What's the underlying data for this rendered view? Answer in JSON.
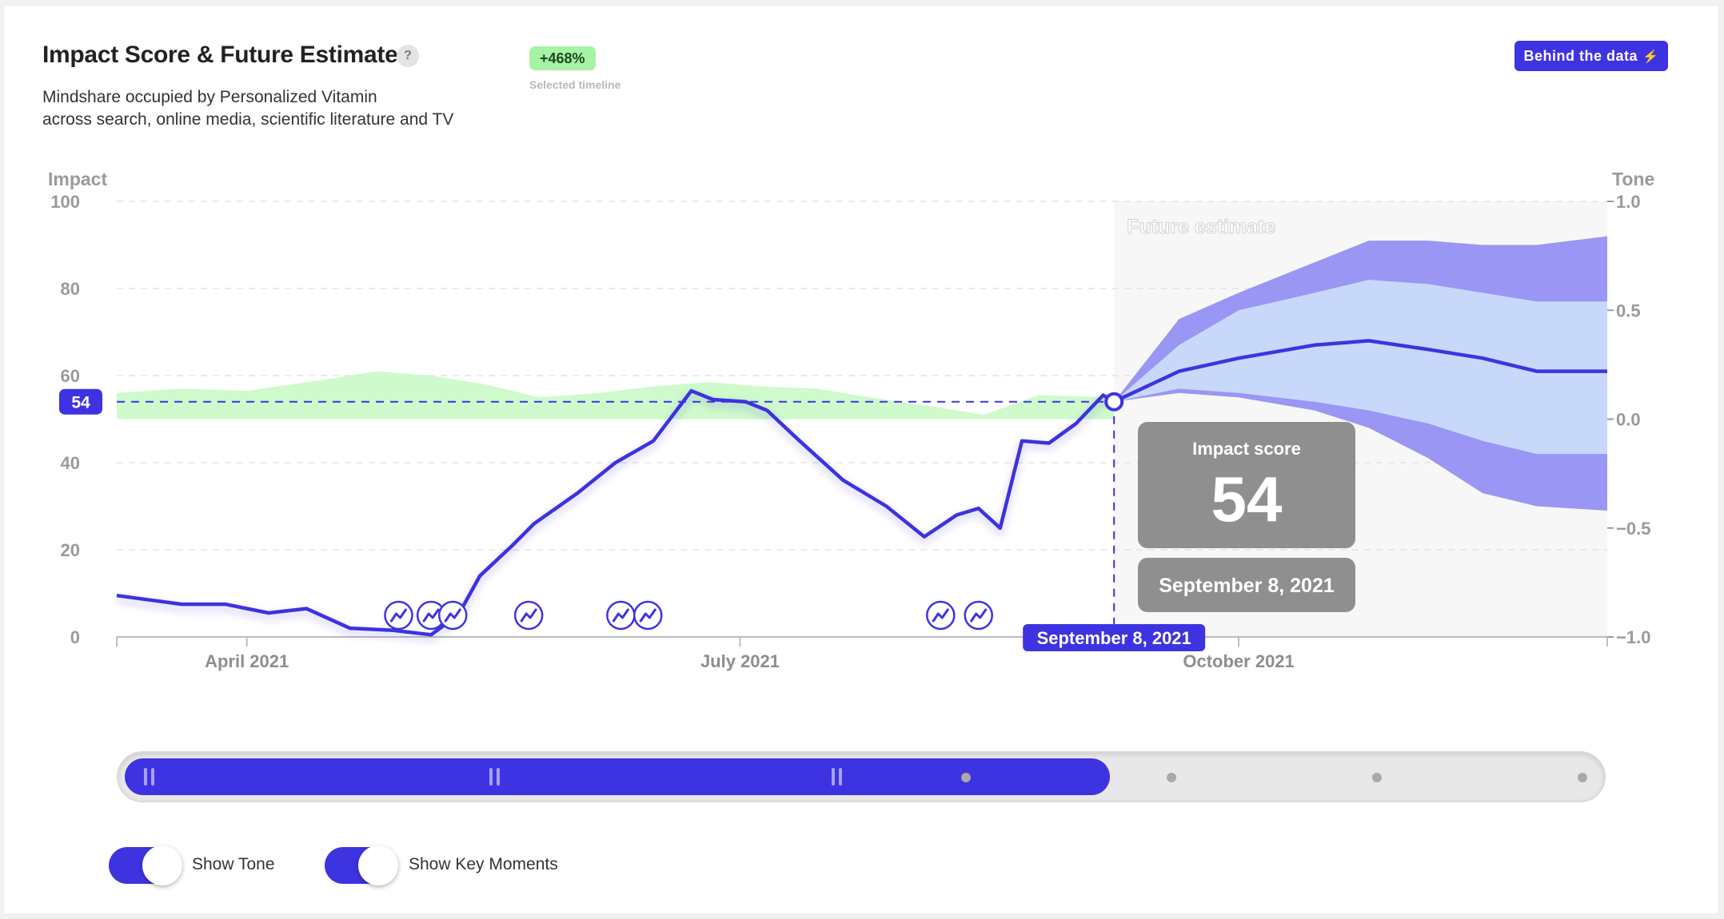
{
  "header": {
    "title": "Impact Score & Future Estimate",
    "help_label": "?",
    "subtitle_line1": "Mindshare occupied by Personalized Vitamin",
    "subtitle_line2": "across search, online media, scientific literature and TV",
    "badge": "+468%",
    "badge_caption": "Selected timeline",
    "behind_button": "Behind the data",
    "behind_icon": "bolt-icon"
  },
  "colors": {
    "accent": "#3e33e0",
    "tone_band": "#c9fac6",
    "forecast_outer": "#9a96f3",
    "forecast_inner": "#c8d8fb",
    "future_region": "#f7f7f7",
    "tooltip_bg": "#8f8f8f"
  },
  "chart_data": {
    "type": "line",
    "left_axis_label": "Impact",
    "right_axis_label": "Tone",
    "ylim": [
      0,
      100
    ],
    "y_ticks": [
      "100",
      "80",
      "60",
      "40",
      "20",
      "0"
    ],
    "tone_ylim": [
      -1,
      1
    ],
    "tone_ticks": [
      "1.0",
      "0.5",
      "0.0",
      "−0.5",
      "−1.0"
    ],
    "x_ticks": [
      "April 2021",
      "July 2021",
      "October 2021"
    ],
    "x_tick_dates": [
      "2021-04-01",
      "2021-07-01",
      "2021-10-01"
    ],
    "x_range": [
      "2021-03-08",
      "2021-12-08"
    ],
    "future_label": "Future estimate",
    "future_start": "2021-09-08",
    "current_value": 54,
    "current_date": "September 8, 2021",
    "tooltip_title": "Impact score",
    "tooltip_value": "54",
    "tooltip_date": "September 8, 2021",
    "marker_value_label": "54",
    "grid": true,
    "impact_series": {
      "name": "Impact",
      "x": [
        "2021-03-08",
        "2021-03-14",
        "2021-03-20",
        "2021-03-28",
        "2021-04-05",
        "2021-04-12",
        "2021-04-20",
        "2021-04-28",
        "2021-05-05",
        "2021-05-10",
        "2021-05-14",
        "2021-05-20",
        "2021-05-24",
        "2021-06-01",
        "2021-06-08",
        "2021-06-15",
        "2021-06-22",
        "2021-06-26",
        "2021-07-02",
        "2021-07-06",
        "2021-07-12",
        "2021-07-20",
        "2021-07-28",
        "2021-08-04",
        "2021-08-10",
        "2021-08-14",
        "2021-08-18",
        "2021-08-22",
        "2021-08-27",
        "2021-09-01",
        "2021-09-06",
        "2021-09-08"
      ],
      "values": [
        9.5,
        8.5,
        7.5,
        7.5,
        5.5,
        6.5,
        2.0,
        1.5,
        0.5,
        5.0,
        14.0,
        21.0,
        26.0,
        33.0,
        40.0,
        45.0,
        56.5,
        54.5,
        54.0,
        52.0,
        45.0,
        36.0,
        30.0,
        23.0,
        28.0,
        29.5,
        25.0,
        45.0,
        44.5,
        49.0,
        55.5,
        54.0
      ]
    },
    "forecast": {
      "name": "Future estimate",
      "x": [
        "2021-09-08",
        "2021-09-20",
        "2021-10-01",
        "2021-10-15",
        "2021-10-25",
        "2021-11-05",
        "2021-11-15",
        "2021-11-25",
        "2021-12-08"
      ],
      "median": [
        54,
        61,
        64,
        67,
        68,
        66,
        64,
        61,
        61
      ],
      "inner_upper": [
        54,
        67,
        75,
        79,
        82,
        81,
        79,
        77,
        77
      ],
      "inner_lower": [
        54,
        57,
        56,
        54,
        52,
        49,
        45,
        42,
        42
      ],
      "outer_upper": [
        54,
        73,
        79,
        86,
        91,
        91,
        90,
        90,
        92
      ],
      "outer_lower": [
        54,
        56,
        55,
        52,
        48,
        41,
        33,
        30,
        29
      ]
    },
    "tone_series": {
      "name": "Tone",
      "x": [
        "2021-03-08",
        "2021-03-20",
        "2021-04-01",
        "2021-04-15",
        "2021-04-25",
        "2021-05-05",
        "2021-05-15",
        "2021-05-25",
        "2021-06-05",
        "2021-06-15",
        "2021-06-25",
        "2021-07-05",
        "2021-07-15",
        "2021-07-25",
        "2021-08-05",
        "2021-08-15",
        "2021-08-25",
        "2021-09-08"
      ],
      "values": [
        0.12,
        0.14,
        0.13,
        0.18,
        0.22,
        0.2,
        0.16,
        0.1,
        0.12,
        0.15,
        0.17,
        0.15,
        0.14,
        0.1,
        0.06,
        0.02,
        0.11,
        0.1
      ]
    },
    "key_moments": [
      "2021-04-29",
      "2021-05-05",
      "2021-05-09",
      "2021-05-23",
      "2021-06-09",
      "2021-06-14",
      "2021-08-07",
      "2021-08-14"
    ],
    "key_moment_icon": "trend-icon"
  },
  "timeline_slider": {
    "selection_start": "2021-03-08",
    "selection_end": "2021-09-08",
    "handle_icon": "grip-icon",
    "position_icon": "dot-icon"
  },
  "toggles": [
    {
      "label": "Show Tone",
      "on": true
    },
    {
      "label": "Show Key Moments",
      "on": true
    }
  ]
}
